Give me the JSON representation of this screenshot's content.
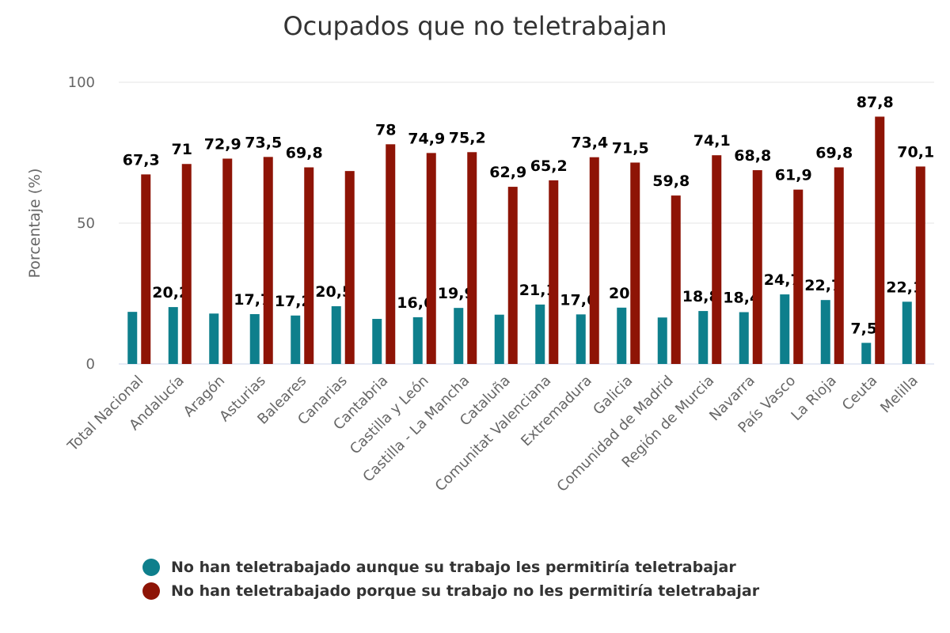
{
  "chart_data": {
    "type": "bar",
    "title": "Ocupados que no teletrabajan",
    "ylabel": "Porcentaje (%)",
    "ylim": [
      0,
      100
    ],
    "yticks": [
      0,
      50,
      100
    ],
    "grid": true,
    "legend_position": "bottom",
    "categories": [
      "Total Nacional",
      "Andalucía",
      "Aragón",
      "Asturias",
      "Baleares",
      "Canarias",
      "Cantabria",
      "Castilla y León",
      "Castilla - La Mancha",
      "Cataluña",
      "Comunitat Valenciana",
      "Extremadura",
      "Galicia",
      "Comunidad de Madrid",
      "Región de Murcia",
      "Navarra",
      "País Vasco",
      "La Rioja",
      "Ceuta",
      "Melilla"
    ],
    "series": [
      {
        "name": "No han teletrabajado aunque su trabajo les permitiría teletrabajar",
        "color": "#0e7f8c",
        "values": [
          18.5,
          20.2,
          17.9,
          17.7,
          17.2,
          20.5,
          16.0,
          16.6,
          19.9,
          17.5,
          21.1,
          17.6,
          20,
          16.5,
          18.8,
          18.4,
          24.7,
          22.7,
          7.5,
          22.1
        ],
        "labels": [
          "",
          "20,2",
          "",
          "17,7",
          "17,2",
          "20,5",
          "",
          "16,6",
          "19,9",
          "",
          "21,1",
          "17,6",
          "20",
          "",
          "18,8",
          "18,4",
          "24,7",
          "22,7",
          "7,5",
          "22,1"
        ]
      },
      {
        "name": "No han teletrabajado porque su trabajo no les permitiría teletrabajar",
        "color": "#8e1406",
        "values": [
          67.3,
          71,
          72.9,
          73.5,
          69.8,
          68.5,
          78,
          74.9,
          75.2,
          62.9,
          65.2,
          73.4,
          71.5,
          59.8,
          74.1,
          68.8,
          61.9,
          69.8,
          87.8,
          70.1
        ],
        "labels": [
          "67,3",
          "71",
          "72,9",
          "73,5",
          "69,8",
          "",
          "78",
          "74,9",
          "75,2",
          "62,9",
          "65,2",
          "73,4",
          "71,5",
          "59,8",
          "74,1",
          "68,8",
          "61,9",
          "69,8",
          "87,8",
          "70,1"
        ]
      }
    ]
  }
}
